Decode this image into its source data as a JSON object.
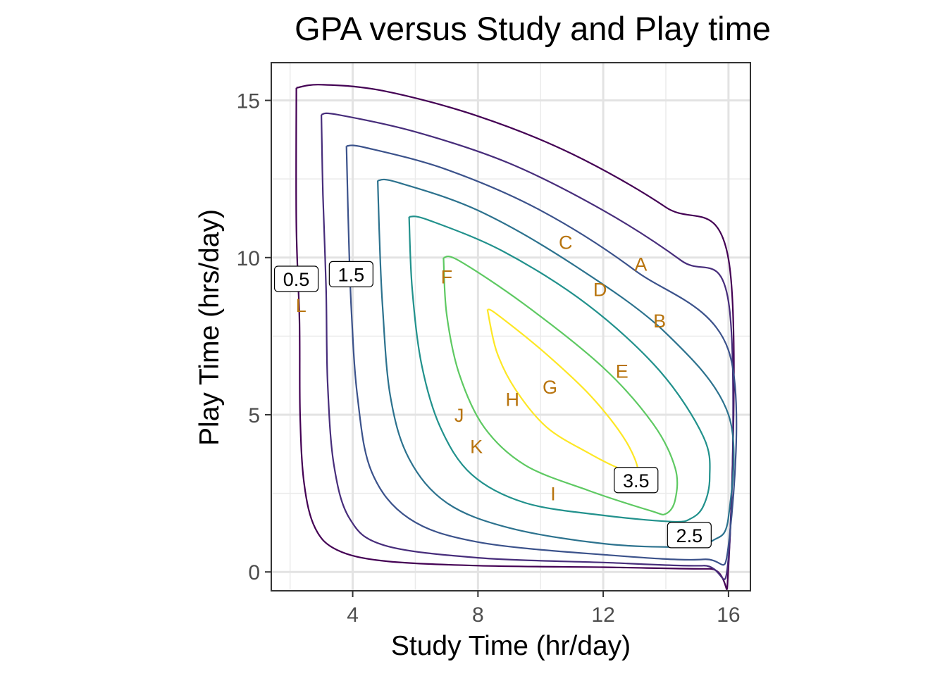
{
  "chart_data": {
    "type": "contour",
    "title": "GPA versus Study and Play time",
    "xlabel": "Study Time (hr/day)",
    "ylabel": "Play Time (hrs/day)",
    "xlim": [
      1.4,
      16.7
    ],
    "ylim": [
      -0.6,
      16.2
    ],
    "x_ticks": [
      4,
      8,
      12,
      16
    ],
    "y_ticks": [
      0,
      5,
      10,
      15
    ],
    "x_tick_labels": [
      "4",
      "8",
      "12",
      "16"
    ],
    "y_tick_labels": [
      "0",
      "5",
      "10",
      "15"
    ],
    "grid": true,
    "legend": "none",
    "point_color": "#b8740e",
    "contours": [
      {
        "level": 0.5,
        "color": "#440154",
        "label": "0.5",
        "points": [
          [
            2.2,
            15.4
          ],
          [
            3.0,
            15.5
          ],
          [
            5,
            15.3
          ],
          [
            8,
            14.5
          ],
          [
            11,
            13.3
          ],
          [
            14,
            11.6
          ],
          [
            16,
            9.95
          ],
          [
            16,
            0.2
          ],
          [
            15.4,
            0.1
          ],
          [
            12,
            0.15
          ],
          [
            8,
            0.2
          ],
          [
            5,
            0.35
          ],
          [
            3.5,
            0.7
          ],
          [
            2.8,
            1.4
          ],
          [
            2.45,
            2.8
          ],
          [
            2.32,
            5
          ],
          [
            2.3,
            8
          ],
          [
            2.2,
            11
          ],
          [
            2.2,
            15.4
          ]
        ]
      },
      {
        "level": 1.0,
        "color": "#472d7b",
        "label": "",
        "points": [
          [
            3.0,
            14.55
          ],
          [
            3.5,
            14.55
          ],
          [
            6,
            14.0
          ],
          [
            9,
            13.0
          ],
          [
            12,
            11.5
          ],
          [
            14.5,
            9.9
          ],
          [
            16,
            8.6
          ],
          [
            16,
            0.45
          ],
          [
            15.2,
            0.2
          ],
          [
            12,
            0.3
          ],
          [
            8,
            0.45
          ],
          [
            5,
            0.85
          ],
          [
            3.9,
            1.7
          ],
          [
            3.4,
            3.4
          ],
          [
            3.2,
            6
          ],
          [
            3.15,
            9
          ],
          [
            3.05,
            12
          ],
          [
            3.0,
            14.55
          ]
        ]
      },
      {
        "level": 1.5,
        "color": "#3b528b",
        "label": "1.5",
        "points": [
          [
            3.8,
            13.55
          ],
          [
            4.4,
            13.5
          ],
          [
            7,
            12.8
          ],
          [
            10,
            11.5
          ],
          [
            13,
            9.6
          ],
          [
            16,
            7.05
          ],
          [
            16,
            0.85
          ],
          [
            15.2,
            0.4
          ],
          [
            12,
            0.55
          ],
          [
            8,
            0.95
          ],
          [
            5.8,
            1.7
          ],
          [
            4.6,
            3.2
          ],
          [
            4.15,
            5.6
          ],
          [
            3.95,
            8.5
          ],
          [
            3.85,
            11.5
          ],
          [
            3.8,
            13.55
          ]
        ]
      },
      {
        "level": 2.0,
        "color": "#2c728e",
        "label": "",
        "points": [
          [
            4.8,
            12.45
          ],
          [
            5.4,
            12.4
          ],
          [
            8,
            11.5
          ],
          [
            11,
            9.8
          ],
          [
            14,
            7.6
          ],
          [
            16,
            5.0
          ],
          [
            16,
            1.75
          ],
          [
            15.5,
            1.0
          ],
          [
            14.5,
            0.8
          ],
          [
            12,
            0.9
          ],
          [
            9,
            1.4
          ],
          [
            7,
            2.2
          ],
          [
            5.8,
            3.6
          ],
          [
            5.2,
            5.6
          ],
          [
            4.95,
            8.5
          ],
          [
            4.85,
            10.8
          ],
          [
            4.8,
            12.45
          ]
        ]
      },
      {
        "level": 2.5,
        "color": "#21918c",
        "label": "2.5",
        "points": [
          [
            5.8,
            11.3
          ],
          [
            6.4,
            11.2
          ],
          [
            8.8,
            10.2
          ],
          [
            11.5,
            8.5
          ],
          [
            13.8,
            6.4
          ],
          [
            15.2,
            4.3
          ],
          [
            15.4,
            3.0
          ],
          [
            15.2,
            2.1
          ],
          [
            14.8,
            1.7
          ],
          [
            14.2,
            1.6
          ],
          [
            12,
            1.8
          ],
          [
            9.5,
            2.2
          ],
          [
            7.8,
            3.1
          ],
          [
            6.8,
            4.6
          ],
          [
            6.2,
            6.6
          ],
          [
            5.9,
            9
          ],
          [
            5.8,
            11.3
          ]
        ]
      },
      {
        "level": 3.0,
        "color": "#5ec962",
        "label": "",
        "points": [
          [
            6.9,
            10.0
          ],
          [
            7.4,
            9.9
          ],
          [
            9.5,
            8.5
          ],
          [
            12,
            6.5
          ],
          [
            13.6,
            4.7
          ],
          [
            14.3,
            3.3
          ],
          [
            14.3,
            2.3
          ],
          [
            14.0,
            1.85
          ],
          [
            13.5,
            1.95
          ],
          [
            11.5,
            2.6
          ],
          [
            9.5,
            3.4
          ],
          [
            8.2,
            4.6
          ],
          [
            7.4,
            6.3
          ],
          [
            7.0,
            8.2
          ],
          [
            6.9,
            10.0
          ]
        ]
      },
      {
        "level": 3.5,
        "color": "#fde725",
        "label": "3.5",
        "points": [
          [
            8.3,
            8.35
          ],
          [
            8.6,
            8.2
          ],
          [
            10.1,
            7.0
          ],
          [
            11.6,
            5.6
          ],
          [
            12.7,
            4.2
          ],
          [
            13.1,
            3.2
          ],
          [
            12.5,
            3.3
          ],
          [
            11.5,
            3.8
          ],
          [
            10.2,
            4.6
          ],
          [
            9.2,
            5.8
          ],
          [
            8.6,
            7.0
          ],
          [
            8.3,
            8.35
          ]
        ]
      }
    ],
    "contour_labels": [
      {
        "text": "0.5",
        "x": 2.2,
        "y": 9.3
      },
      {
        "text": "1.5",
        "x": 3.95,
        "y": 9.45
      },
      {
        "text": "2.5",
        "x": 14.75,
        "y": 1.15
      },
      {
        "text": "3.5",
        "x": 13.05,
        "y": 2.9
      }
    ],
    "points": [
      {
        "label": "A",
        "x": 13.2,
        "y": 9.8
      },
      {
        "label": "B",
        "x": 13.8,
        "y": 8.0
      },
      {
        "label": "C",
        "x": 10.8,
        "y": 10.5
      },
      {
        "label": "D",
        "x": 11.9,
        "y": 9.0
      },
      {
        "label": "E",
        "x": 12.6,
        "y": 6.4
      },
      {
        "label": "F",
        "x": 7.0,
        "y": 9.4
      },
      {
        "label": "G",
        "x": 10.3,
        "y": 5.9
      },
      {
        "label": "H",
        "x": 9.1,
        "y": 5.5
      },
      {
        "label": "I",
        "x": 10.4,
        "y": 2.5
      },
      {
        "label": "J",
        "x": 7.4,
        "y": 5.0
      },
      {
        "label": "K",
        "x": 7.95,
        "y": 4.0
      },
      {
        "label": "L",
        "x": 2.35,
        "y": 8.5
      }
    ]
  }
}
